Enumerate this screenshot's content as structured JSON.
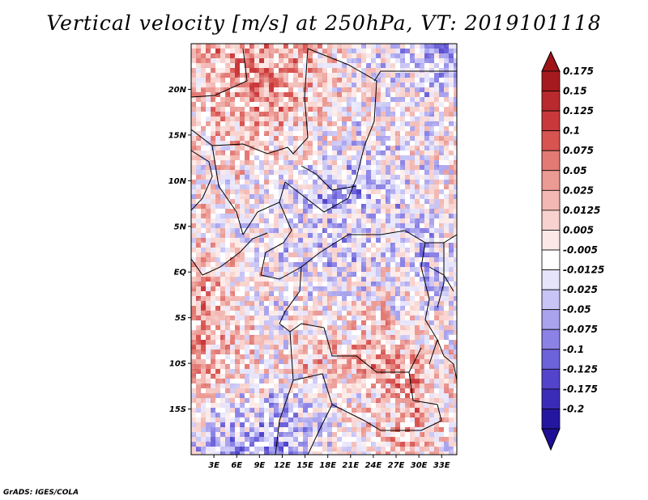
{
  "title": "Vertical velocity [m/s] at 250hPa, VT: 2019101118",
  "footer": "GrADS: IGES/COLA",
  "map": {
    "lon_range": [
      0,
      35
    ],
    "lat_range": [
      -20,
      25
    ],
    "lat_ticks": [
      {
        "value": 20,
        "label": "20N"
      },
      {
        "value": 15,
        "label": "15N"
      },
      {
        "value": 10,
        "label": "10N"
      },
      {
        "value": 5,
        "label": "5N"
      },
      {
        "value": 0,
        "label": "EQ"
      },
      {
        "value": -5,
        "label": "5S"
      },
      {
        "value": -10,
        "label": "10S"
      },
      {
        "value": -15,
        "label": "15S"
      }
    ],
    "lon_ticks": [
      {
        "value": 3,
        "label": "3E"
      },
      {
        "value": 6,
        "label": "6E"
      },
      {
        "value": 9,
        "label": "9E"
      },
      {
        "value": 12,
        "label": "12E"
      },
      {
        "value": 15,
        "label": "15E"
      },
      {
        "value": 18,
        "label": "18E"
      },
      {
        "value": 21,
        "label": "21E"
      },
      {
        "value": 24,
        "label": "24E"
      },
      {
        "value": 27,
        "label": "27E"
      },
      {
        "value": 30,
        "label": "30E"
      },
      {
        "value": 33,
        "label": "33E"
      }
    ]
  },
  "colorbar": {
    "levels": [
      {
        "label": "0.175",
        "color": "#a51a1f"
      },
      {
        "label": "0.15",
        "color": "#b82a2d"
      },
      {
        "label": "0.125",
        "color": "#c9393b"
      },
      {
        "label": "0.1",
        "color": "#d85451"
      },
      {
        "label": "0.075",
        "color": "#e37a74"
      },
      {
        "label": "0.05",
        "color": "#ec9a94"
      },
      {
        "label": "0.025",
        "color": "#f3b8b3"
      },
      {
        "label": "0.0125",
        "color": "#f8d2ce"
      },
      {
        "label": "0.005",
        "color": "#fce9e7"
      },
      {
        "label": "-0.005",
        "color": "#ffffff"
      },
      {
        "label": "-0.0125",
        "color": "#e6e4fb"
      },
      {
        "label": "-0.025",
        "color": "#c8c4f5"
      },
      {
        "label": "-0.05",
        "color": "#a9a3ee"
      },
      {
        "label": "-0.075",
        "color": "#8a82e5"
      },
      {
        "label": "-0.1",
        "color": "#6c62da"
      },
      {
        "label": "-0.125",
        "color": "#5245cc"
      },
      {
        "label": "-0.175",
        "color": "#3a2cb8"
      },
      {
        "label": "-0.2",
        "color": "#2516a0"
      }
    ],
    "top_color": "#9e1418",
    "bottom_color": "#1f0f96"
  }
}
